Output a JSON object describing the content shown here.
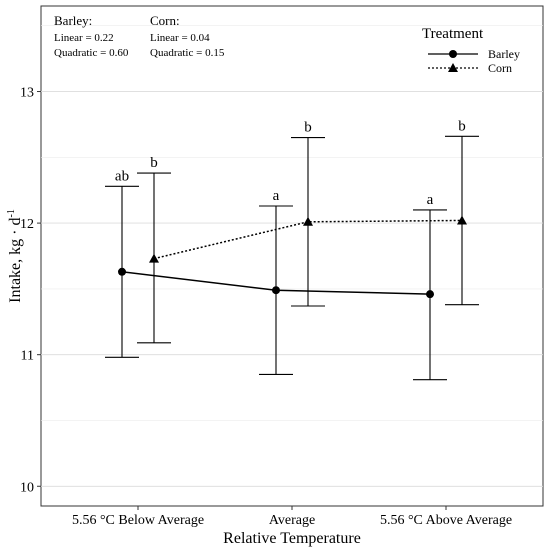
{
  "chart_data": {
    "type": "line",
    "categories": [
      "5.56 °C Below Average",
      "Average",
      "5.56 °C Above Average"
    ],
    "xlabel": "Relative Temperature",
    "ylabel": "Intake, kg · d",
    "ylabel_superscript": "-1",
    "ylim": [
      9.85,
      13.65
    ],
    "yticks": [
      10,
      11,
      12,
      13
    ],
    "grid": "horizontal",
    "legend": {
      "title": "Treatment",
      "position": "top-right",
      "entries": [
        {
          "name": "Barley",
          "line_style": "solid",
          "marker": "circle"
        },
        {
          "name": "Corn",
          "line_style": "dotted",
          "marker": "triangle"
        }
      ]
    },
    "series": [
      {
        "name": "Barley",
        "values": [
          11.63,
          11.49,
          11.46
        ],
        "lower": [
          10.98,
          10.85,
          10.81
        ],
        "upper": [
          12.28,
          12.13,
          12.1
        ],
        "letters": [
          "ab",
          "a",
          "a"
        ]
      },
      {
        "name": "Corn",
        "values": [
          11.73,
          12.01,
          12.02
        ],
        "lower": [
          11.09,
          11.37,
          11.38
        ],
        "upper": [
          12.38,
          12.65,
          12.66
        ],
        "letters": [
          "b",
          "b",
          "b"
        ]
      }
    ],
    "annotations": {
      "barley": {
        "title": "Barley:",
        "linear": "Linear = 0.22",
        "quadratic": "Quadratic = 0.60"
      },
      "corn": {
        "title": "Corn:",
        "linear": "Linear = 0.04",
        "quadratic": "Quadratic = 0.15"
      }
    }
  }
}
